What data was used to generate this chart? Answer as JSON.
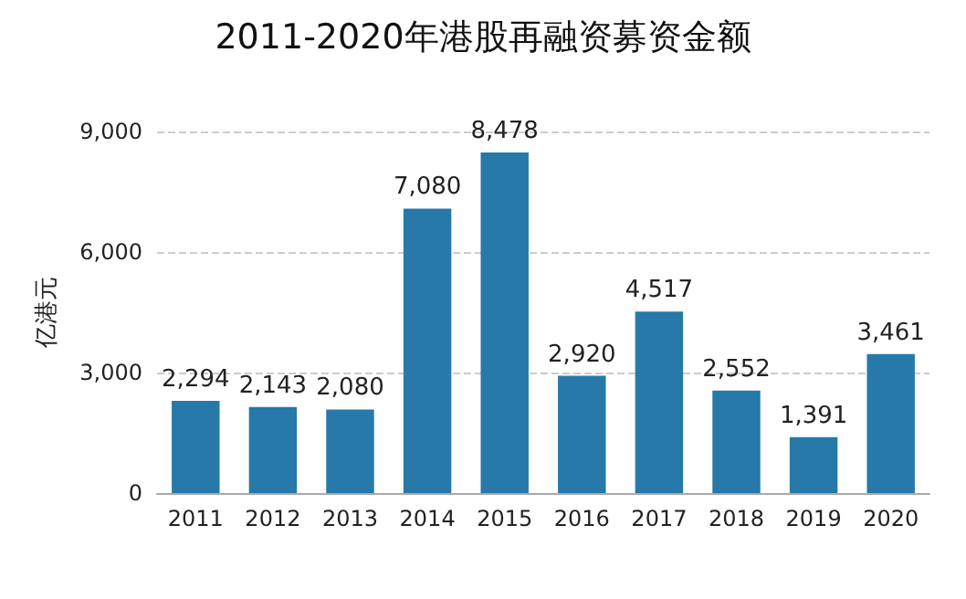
{
  "chart_data": {
    "type": "bar",
    "title": "2011-2020年港股再融资募资金额",
    "ylabel": "亿港元",
    "categories": [
      "2011",
      "2012",
      "2013",
      "2014",
      "2015",
      "2016",
      "2017",
      "2018",
      "2019",
      "2020"
    ],
    "values": [
      2294,
      2143,
      2080,
      7080,
      8478,
      2920,
      4517,
      2552,
      1391,
      3461
    ],
    "value_labels": [
      "2,294",
      "2,143",
      "2,080",
      "7,080",
      "8,478",
      "2,920",
      "4,517",
      "2,552",
      "1,391",
      "3,461"
    ],
    "color": "#2679a8",
    "ylim": [
      0,
      9000
    ],
    "yticks": [
      0,
      {
        "value": 3000,
        "label": "3,000"
      },
      {
        "value": 6000,
        "label": "6,000"
      },
      {
        "value": 9000,
        "label": "9,000"
      }
    ],
    "grid": "y"
  }
}
